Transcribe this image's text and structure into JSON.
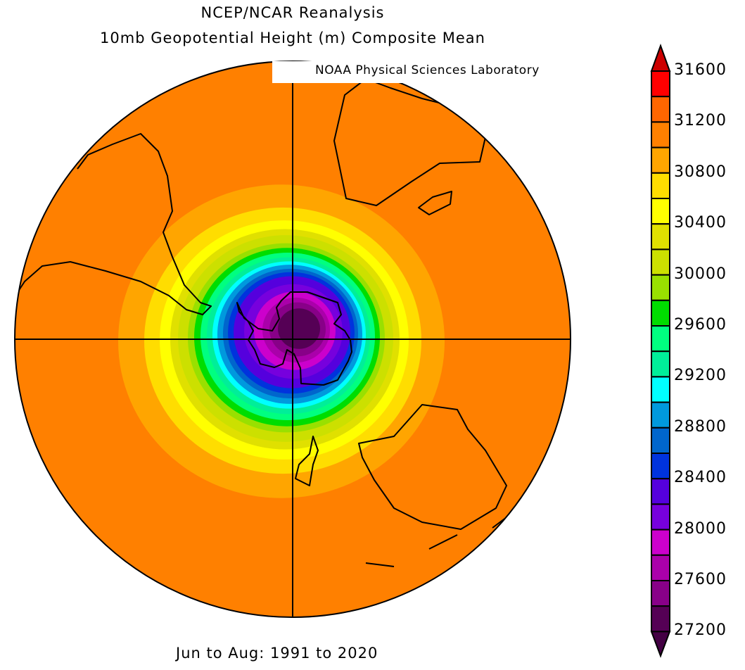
{
  "title_line1": "NCEP/NCAR Reanalysis",
  "title_line2": "10mb Geopotential Height (m) Composite Mean",
  "credit": "NOAA Physical Sciences Laboratory",
  "footer": "Jun to Aug: 1991 to 2020",
  "colorbar": {
    "labels": [
      "31600",
      "31200",
      "30800",
      "30400",
      "30000",
      "29600",
      "29200",
      "28800",
      "28400",
      "28000",
      "27600",
      "27200"
    ],
    "levels_top_to_bottom": [
      31400,
      31200,
      31000,
      30800,
      30600,
      30400,
      30200,
      30000,
      29800,
      29600,
      29400,
      29200,
      29000,
      28800,
      28600,
      28400,
      28200,
      28000,
      27800,
      27600,
      27400,
      27200
    ],
    "colors_top_to_bottom": [
      "#ff0000",
      "#ff6600",
      "#ff8000",
      "#ffa500",
      "#ffdd00",
      "#ffff00",
      "#e0e000",
      "#cce000",
      "#99e000",
      "#00dd00",
      "#00ff80",
      "#00ee99",
      "#00ffff",
      "#0099dd",
      "#0066cc",
      "#0033dd",
      "#5500dd",
      "#7700dd",
      "#cc00cc",
      "#aa00aa",
      "#880088",
      "#550055"
    ],
    "over_color": "#cc0000",
    "under_color": "#440044"
  },
  "map": {
    "projection": "south-polar-stereographic",
    "background_color": "#ff8000",
    "contour_colors_outer_to_inner": [
      "#ffa500",
      "#ffdd00",
      "#ffff00",
      "#e0e000",
      "#cce000",
      "#99e000",
      "#00dd00",
      "#00ff80",
      "#00ee99",
      "#00ffff",
      "#0099dd",
      "#0066cc",
      "#0033dd",
      "#5500dd",
      "#7700dd",
      "#cc00cc",
      "#aa00aa",
      "#880088",
      "#550055"
    ]
  }
}
